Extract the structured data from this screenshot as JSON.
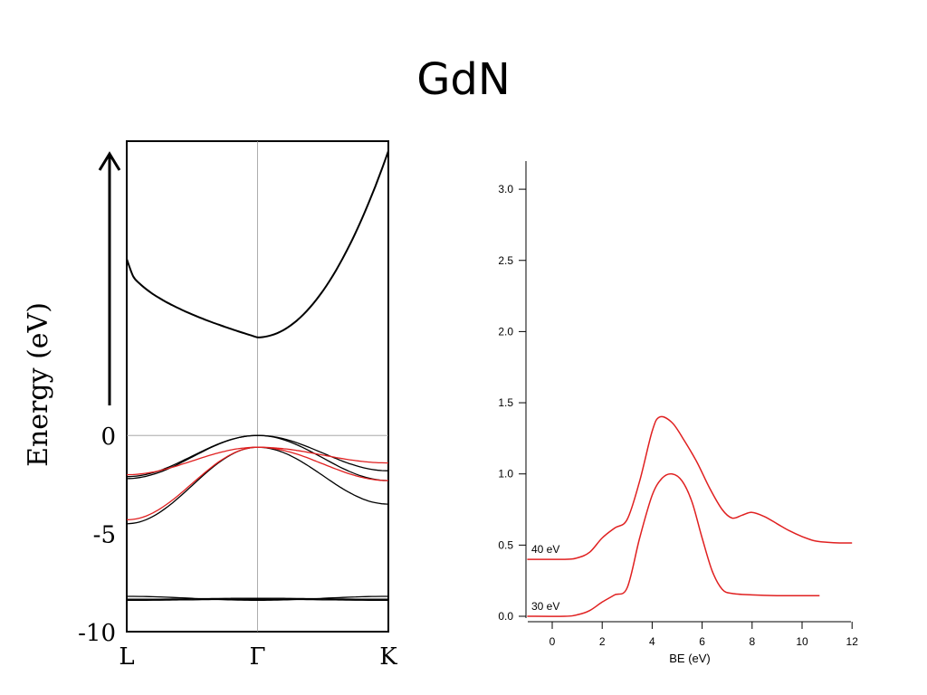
{
  "slide": {
    "title": "GdN"
  },
  "chart_data": [
    {
      "type": "line",
      "title": "",
      "ylabel": "Energy (eV)",
      "xlabel": "",
      "ylim": [
        -10,
        15
      ],
      "y_ticks": [
        0,
        -5,
        -10
      ],
      "x_ticks": [
        "L",
        "Γ",
        "K"
      ],
      "x": [
        0,
        1,
        2
      ],
      "colors": {
        "black": "#000000",
        "red": "#e02020",
        "frame": "#000000",
        "guide": "#999999"
      },
      "series": [
        {
          "color": "black",
          "y": [
            9.0,
            5.0,
            14.5
          ]
        },
        {
          "color": "black",
          "y": [
            -2.1,
            0.0,
            -1.8
          ]
        },
        {
          "color": "black",
          "y": [
            -2.2,
            0.0,
            -2.3
          ]
        },
        {
          "color": "black",
          "y": [
            -4.5,
            -0.6,
            -3.5
          ]
        },
        {
          "color": "red",
          "y": [
            -2.0,
            -0.6,
            -1.4
          ]
        },
        {
          "color": "red",
          "y": [
            -4.3,
            -0.6,
            -2.3
          ]
        },
        {
          "color": "black",
          "y": [
            -8.2,
            -8.4,
            -8.2
          ]
        },
        {
          "color": "black",
          "y": [
            -8.35,
            -8.3,
            -8.35
          ]
        },
        {
          "color": "black",
          "y": [
            -8.4,
            -8.35,
            -8.4
          ]
        }
      ]
    },
    {
      "type": "line",
      "title": "",
      "xlabel": "BE (eV)",
      "ylabel": "",
      "xlim": [
        -1,
        12
      ],
      "ylim": [
        0,
        3.2
      ],
      "x_ticks": [
        0,
        2,
        4,
        6,
        8,
        10,
        12
      ],
      "y_ticks": [
        "0.0",
        "0.5",
        "1.0",
        "1.5",
        "2.0",
        "2.5",
        "3.0"
      ],
      "colors": {
        "line": "#e02020",
        "axis": "#000000"
      },
      "series": [
        {
          "name": "40 eV",
          "x": [
            -1,
            0.5,
            1,
            1.5,
            2,
            2.5,
            3,
            3.5,
            4,
            4.3,
            4.8,
            5.3,
            5.8,
            6.3,
            6.8,
            7.2,
            7.6,
            8,
            8.5,
            9,
            9.5,
            10,
            10.5,
            11,
            11.5,
            12
          ],
          "y": [
            0.4,
            0.4,
            0.41,
            0.45,
            0.55,
            0.62,
            0.68,
            0.95,
            1.3,
            1.4,
            1.36,
            1.23,
            1.08,
            0.9,
            0.75,
            0.69,
            0.71,
            0.73,
            0.7,
            0.65,
            0.6,
            0.56,
            0.53,
            0.52,
            0.515,
            0.515
          ]
        },
        {
          "name": "30 eV",
          "x": [
            -1,
            0.5,
            1,
            1.5,
            2,
            2.5,
            3,
            3.5,
            4,
            4.4,
            4.8,
            5.2,
            5.6,
            6,
            6.4,
            6.8,
            7.2,
            8,
            9,
            10,
            10.7
          ],
          "y": [
            0.0,
            0.0,
            0.01,
            0.04,
            0.1,
            0.15,
            0.2,
            0.55,
            0.85,
            0.97,
            1.0,
            0.95,
            0.8,
            0.55,
            0.32,
            0.19,
            0.16,
            0.15,
            0.145,
            0.145,
            0.145
          ]
        }
      ]
    }
  ]
}
